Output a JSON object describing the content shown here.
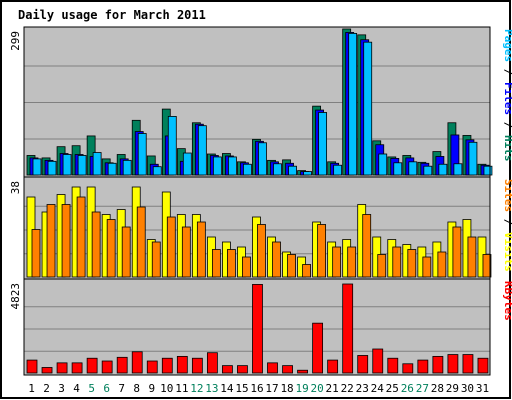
{
  "chart_data": {
    "type": "bar",
    "title": "Daily usage for March 2011",
    "categories": [
      "1",
      "2",
      "3",
      "4",
      "5",
      "6",
      "7",
      "8",
      "9",
      "10",
      "11",
      "12",
      "13",
      "14",
      "15",
      "16",
      "17",
      "18",
      "19",
      "20",
      "21",
      "22",
      "23",
      "24",
      "25",
      "26",
      "27",
      "28",
      "29",
      "30",
      "31"
    ],
    "weekend_days": [
      "5",
      "6",
      "12",
      "13",
      "19",
      "20",
      "26",
      "27"
    ],
    "colors": {
      "hits": "#00805c",
      "files": "#0000ff",
      "pages": "#00c0ff",
      "visits": "#ffff00",
      "sites": "#ff8000",
      "kbytes": "#ff0000",
      "title": "#0000ff",
      "weekend_tick": "#00805c",
      "plot_bg": "#c0c0c0",
      "grid": "#808080"
    },
    "panels": [
      {
        "id": "top",
        "ymax_label": "299",
        "ylim": [
          0,
          299
        ],
        "side_label_parts": [
          {
            "text": "Pages",
            "color": "#00c0ff"
          },
          {
            "text": " / ",
            "color": "#000000"
          },
          {
            "text": "Files",
            "color": "#0000ff"
          },
          {
            "text": " / ",
            "color": "#000000"
          },
          {
            "text": "Hits",
            "color": "#00805c"
          }
        ],
        "series": [
          {
            "name": "Hits",
            "values": [
              40,
              35,
              58,
              60,
              80,
              33,
              42,
              112,
              39,
              135,
              54,
              107,
              43,
              44,
              27,
              73,
              30,
              31,
              9,
              141,
              27,
              299,
              287,
              70,
              37,
              40,
              26,
              48,
              107,
              81,
              22
            ]
          },
          {
            "name": "Files",
            "values": [
              35,
              30,
              44,
              42,
              38,
              25,
              33,
              89,
              22,
              80,
              28,
              104,
              40,
              39,
              25,
              69,
              27,
              24,
              7,
              133,
              24,
              292,
              277,
              62,
              34,
              35,
              24,
              38,
              82,
              72,
              20
            ]
          },
          {
            "name": "Pages",
            "values": [
              33,
              28,
              42,
              40,
              46,
              24,
              30,
              85,
              17,
              120,
              45,
              101,
              37,
              37,
              22,
              66,
              23,
              18,
              7,
              128,
              20,
              290,
              272,
              43,
              25,
              27,
              18,
              22,
              23,
              67,
              18
            ]
          }
        ]
      },
      {
        "id": "middle",
        "ymax_label": "38",
        "ylim": [
          0,
          38
        ],
        "side_label_parts": [
          {
            "text": "Sites",
            "color": "#ff8000"
          },
          {
            "text": " / ",
            "color": "#000000"
          },
          {
            "text": "Visits",
            "color": "#ffff00"
          }
        ],
        "series": [
          {
            "name": "Visits",
            "values": [
              32,
              26,
              33,
              36,
              36,
              25,
              27,
              36,
              15,
              34,
              25,
              25,
              16,
              14,
              12,
              24,
              16,
              10,
              8,
              22,
              14,
              15,
              29,
              16,
              15,
              13,
              12,
              14,
              22,
              23,
              16
            ]
          },
          {
            "name": "Sites",
            "values": [
              19,
              29,
              29,
              32,
              26,
              23,
              20,
              28,
              14,
              24,
              20,
              22,
              11,
              11,
              8,
              21,
              14,
              9,
              5,
              21,
              12,
              12,
              25,
              9,
              12,
              11,
              8,
              10,
              20,
              16,
              9
            ]
          }
        ]
      },
      {
        "id": "bottom",
        "ymax_label": "4823",
        "ylim": [
          0,
          4823
        ],
        "side_label_parts": [
          {
            "text": "KBytes",
            "color": "#ff0000"
          }
        ],
        "series": [
          {
            "name": "KBytes",
            "values": [
              700,
              300,
              550,
              550,
              800,
              650,
              850,
              1150,
              650,
              800,
              900,
              800,
              1100,
              400,
              400,
              4800,
              550,
              400,
              150,
              2700,
              700,
              4823,
              950,
              1300,
              800,
              500,
              700,
              900,
              1000,
              1000,
              800
            ]
          }
        ]
      }
    ]
  }
}
